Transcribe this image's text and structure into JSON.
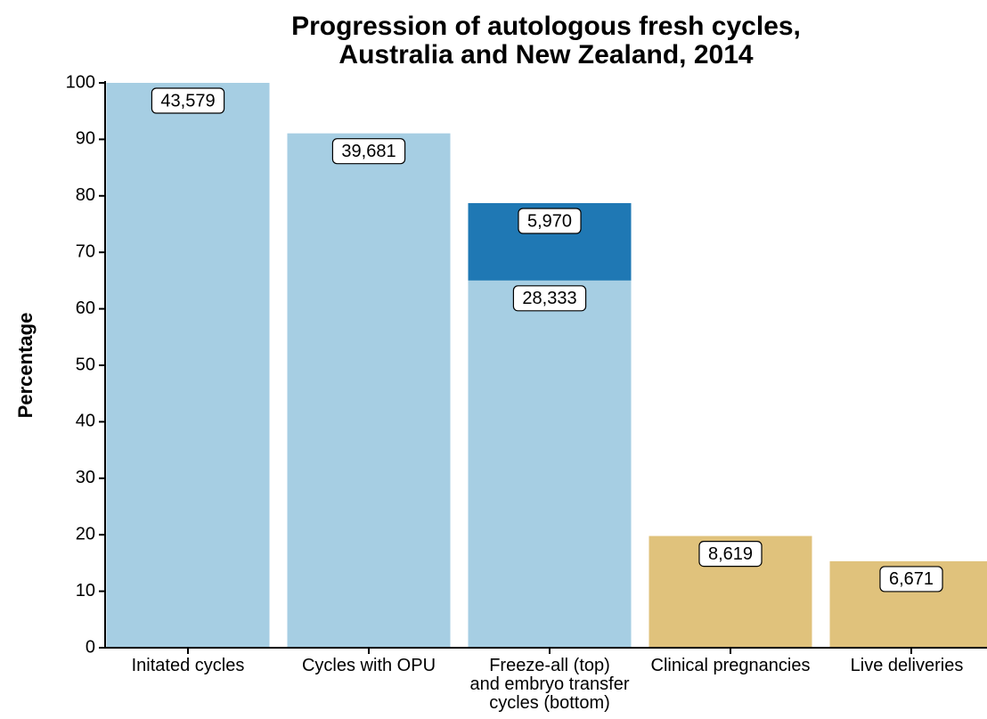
{
  "chart_data": {
    "type": "bar",
    "stacked": true,
    "title": "Progression of autologous fresh cycles,\nAustralia and New Zealand, 2014",
    "y_label": "Percentage",
    "categories": [
      "Initated cycles",
      "Cycles with OPU",
      "Freeze-all (top)\nand embryo transfer\ncycles (bottom)",
      "Clinical pregnancies",
      "Live deliveries"
    ],
    "series": [
      {
        "colors": [
          "#a6cee3",
          "#a6cee3",
          "#a6cee3",
          "#e0c27c",
          "#e0c27c"
        ],
        "values": [
          100,
          91.06,
          65.01,
          19.78,
          15.31
        ],
        "labels": [
          "43,579",
          "39,681",
          "28,333",
          "8,619",
          "6,671"
        ]
      },
      {
        "color": "#1f78b4",
        "values": [
          null,
          null,
          13.7,
          null,
          null
        ],
        "labels": [
          null,
          null,
          "5,970",
          null,
          null
        ]
      }
    ],
    "ylim": [
      0,
      100
    ],
    "yticks": [
      0,
      10,
      20,
      30,
      40,
      50,
      60,
      70,
      80,
      90,
      100
    ],
    "grid": false
  }
}
